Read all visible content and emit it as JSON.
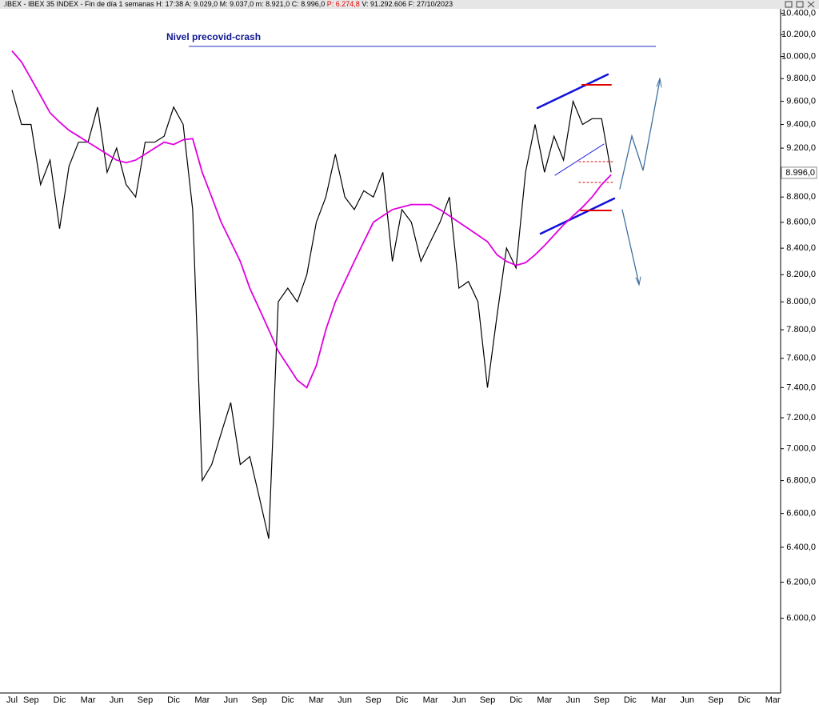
{
  "chart_data": {
    "type": "line",
    "header": {
      "text": ".IBEX - IBEX 35 INDEX - Fin de día 1 semanas  H: 17:38  A: 9.029,0  M: 9.037,0  m: 8.921,0  C: 8.996,0",
      "p": "P: 6.274,8",
      "rest": "V: 91.292.606  F: 27/10/2023"
    },
    "annotation": "Nivel precovid-crash",
    "log_scale": true,
    "categories": [
      "Jul",
      null,
      "Sep",
      null,
      null,
      "Dic",
      null,
      null,
      "Mar",
      null,
      null,
      "Jun",
      null,
      null,
      "Sep",
      null,
      null,
      "Dic",
      null,
      null,
      "Mar",
      null,
      null,
      "Jun",
      null,
      null,
      "Sep",
      null,
      null,
      "Dic",
      null,
      null,
      "Mar",
      null,
      null,
      "Jun",
      null,
      null,
      "Sep",
      null,
      null,
      "Dic",
      null,
      null,
      "Mar",
      null,
      null,
      "Jun",
      null,
      null,
      "Sep",
      null,
      null,
      "Dic",
      null,
      null,
      "Mar",
      null,
      null,
      "Jun",
      null,
      null,
      "Sep",
      null,
      null,
      "Dic",
      null,
      null,
      "Mar",
      null,
      null,
      "Jun",
      null,
      null,
      "Sep",
      null,
      null,
      "Dic",
      null,
      null,
      "Mar"
    ],
    "series": [
      {
        "color": "#000000",
        "values": [
          9700,
          9400,
          9400,
          8900,
          9100,
          8550,
          9050,
          9250,
          9250,
          9550,
          9000,
          9200,
          8900,
          8800,
          9250,
          9250,
          9300,
          9550,
          9400,
          8700,
          6800,
          6900,
          7100,
          7300,
          6900,
          6950,
          6700,
          6450,
          8000,
          8100,
          8000,
          8200,
          8600,
          8800,
          9150,
          8800,
          8700,
          8850,
          8800,
          9000,
          8300,
          8700,
          8600,
          8300,
          8450,
          8600,
          8800,
          8100,
          8150,
          8000,
          7400,
          7900,
          8400,
          8250,
          9000,
          9400,
          9000,
          9300,
          9100,
          9600,
          9400,
          9450,
          9450,
          9000,
          null,
          null,
          null,
          null,
          null,
          null,
          null,
          null,
          null,
          null,
          null,
          null,
          null,
          null,
          null,
          null,
          null
        ]
      },
      {
        "color": "#e000e0",
        "values": [
          10050,
          9950,
          9800,
          9650,
          9500,
          9420,
          9350,
          9300,
          9250,
          9200,
          9150,
          9100,
          9080,
          9100,
          9150,
          9200,
          9250,
          9230,
          9270,
          9280,
          9000,
          8800,
          8600,
          8450,
          8300,
          8100,
          7950,
          7800,
          7650,
          7550,
          7450,
          7400,
          7550,
          7800,
          8000,
          8150,
          8300,
          8450,
          8600,
          8650,
          8700,
          8720,
          8740,
          8740,
          8740,
          8700,
          8650,
          8600,
          8550,
          8500,
          8450,
          8350,
          8300,
          8270,
          8290,
          8350,
          8420,
          8500,
          8580,
          8650,
          8720,
          8800,
          8900,
          8980,
          null,
          null,
          null,
          null,
          null,
          null,
          null,
          null,
          null,
          null,
          null,
          null,
          null,
          null,
          null,
          null,
          null
        ]
      }
    ],
    "last_price": {
      "value": 8996,
      "label": "8.996,0"
    },
    "ylim": [
      5610,
      10450
    ],
    "yticks": [
      {
        "value": 6000,
        "label": "6.000,0"
      },
      {
        "value": 6200,
        "label": "6.200,0"
      },
      {
        "value": 6400,
        "label": "6.400,0"
      },
      {
        "value": 6600,
        "label": "6.600,0"
      },
      {
        "value": 6800,
        "label": "6.800,0"
      },
      {
        "value": 7000,
        "label": "7.000,0"
      },
      {
        "value": 7200,
        "label": "7.200,0"
      },
      {
        "value": 7400,
        "label": "7.400,0"
      },
      {
        "value": 7600,
        "label": "7.600,0"
      },
      {
        "value": 7800,
        "label": "7.800,0"
      },
      {
        "value": 8000,
        "label": "8.000,0"
      },
      {
        "value": 8200,
        "label": "8.200,0"
      },
      {
        "value": 8400,
        "label": "8.400,0"
      },
      {
        "value": 8600,
        "label": "8.600,0"
      },
      {
        "value": 8800,
        "label": "8.800,0"
      },
      {
        "value": 9200,
        "label": "9.200,0"
      },
      {
        "value": 9400,
        "label": "9.400,0"
      },
      {
        "value": 9600,
        "label": "9.600,0"
      },
      {
        "value": 9800,
        "label": "9.800,0"
      },
      {
        "value": 10000,
        "label": "10.000,0"
      },
      {
        "value": 10200,
        "label": "10.200,0"
      },
      {
        "value": 10400,
        "label": "10.400,0"
      }
    ]
  }
}
